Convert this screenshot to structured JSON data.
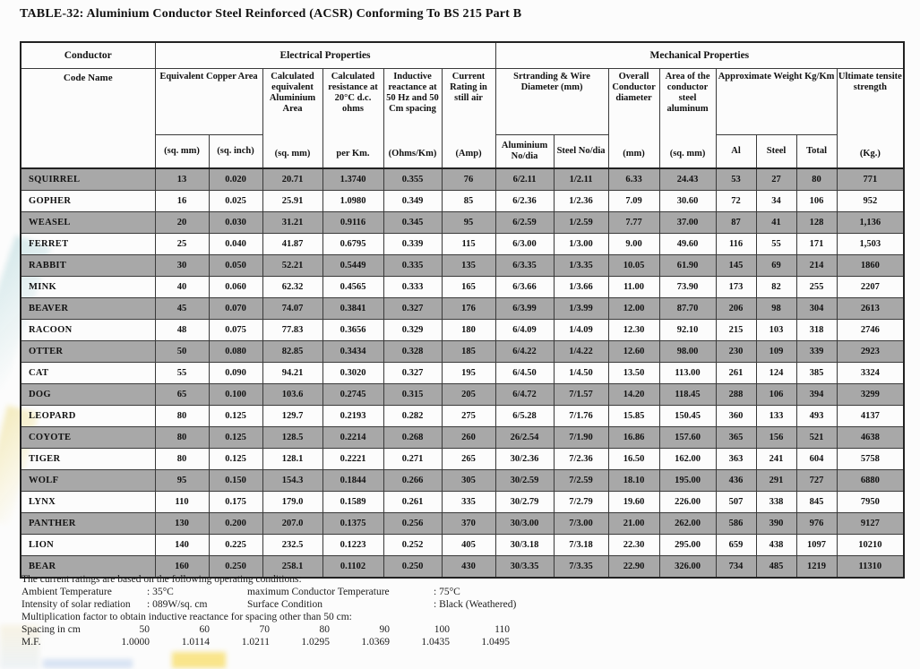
{
  "title": "TABLE-32: Aluminium Conductor Steel Reinforced (ACSR) Conforming To BS 215 Part B",
  "colors": {
    "row_shade": "#a8a8a8",
    "border": "#3a3a3a",
    "text": "#111111"
  },
  "table": {
    "group_headers": {
      "conductor": "Conductor",
      "electrical": "Electrical Properties",
      "mechanical": "Mechanical Properties"
    },
    "headers": {
      "code_name": "Code Name",
      "equivalent_copper": "Equivalent Copper Area",
      "eq_mm_unit": "(sq. mm)",
      "eq_inch_unit": "(sq. inch)",
      "calc_aluminium": "Calculated equivalent Aluminium Area",
      "calc_aluminium_unit": "(sq. mm)",
      "calc_resistance": "Calculated resistance at 20°C d.c. ohms",
      "calc_resistance_unit": "per Km.",
      "inductive": "Inductive reactance at 50 Hz and 50 Cm spacing",
      "inductive_unit": "(Ohms/Km)",
      "current_rating": "Current Rating in still air",
      "current_rating_unit": "(Amp)",
      "stranding": "Srtranding & Wire Diameter (mm)",
      "stranding_al": "Aluminium No/dia",
      "stranding_steel": "Steel No/dia",
      "overall_diameter": "Overall Conductor diameter",
      "overall_diameter_unit": "(mm)",
      "area_conductor": "Area of the conductor steel aluminum",
      "area_conductor_unit": "(sq. mm)",
      "weight": "Approximate Weight Kg/Km",
      "weight_al": "Al",
      "weight_steel": "Steel",
      "weight_total": "Total",
      "ultimate": "Ultimate tensite strength",
      "ultimate_unit": "(Kg.)"
    },
    "rows": [
      [
        "SQUIRREL",
        "13",
        "0.020",
        "20.71",
        "1.3740",
        "0.355",
        "76",
        "6/2.11",
        "1/2.11",
        "6.33",
        "24.43",
        "53",
        "27",
        "80",
        "771"
      ],
      [
        "GOPHER",
        "16",
        "0.025",
        "25.91",
        "1.0980",
        "0.349",
        "85",
        "6/2.36",
        "1/2.36",
        "7.09",
        "30.60",
        "72",
        "34",
        "106",
        "952"
      ],
      [
        "WEASEL",
        "20",
        "0.030",
        "31.21",
        "0.9116",
        "0.345",
        "95",
        "6/2.59",
        "1/2.59",
        "7.77",
        "37.00",
        "87",
        "41",
        "128",
        "1,136"
      ],
      [
        "FERRET",
        "25",
        "0.040",
        "41.87",
        "0.6795",
        "0.339",
        "115",
        "6/3.00",
        "1/3.00",
        "9.00",
        "49.60",
        "116",
        "55",
        "171",
        "1,503"
      ],
      [
        "RABBIT",
        "30",
        "0.050",
        "52.21",
        "0.5449",
        "0.335",
        "135",
        "6/3.35",
        "1/3.35",
        "10.05",
        "61.90",
        "145",
        "69",
        "214",
        "1860"
      ],
      [
        "MINK",
        "40",
        "0.060",
        "62.32",
        "0.4565",
        "0.333",
        "165",
        "6/3.66",
        "1/3.66",
        "11.00",
        "73.90",
        "173",
        "82",
        "255",
        "2207"
      ],
      [
        "BEAVER",
        "45",
        "0.070",
        "74.07",
        "0.3841",
        "0.327",
        "176",
        "6/3.99",
        "1/3.99",
        "12.00",
        "87.70",
        "206",
        "98",
        "304",
        "2613"
      ],
      [
        "RACOON",
        "48",
        "0.075",
        "77.83",
        "0.3656",
        "0.329",
        "180",
        "6/4.09",
        "1/4.09",
        "12.30",
        "92.10",
        "215",
        "103",
        "318",
        "2746"
      ],
      [
        "OTTER",
        "50",
        "0.080",
        "82.85",
        "0.3434",
        "0.328",
        "185",
        "6/4.22",
        "1/4.22",
        "12.60",
        "98.00",
        "230",
        "109",
        "339",
        "2923"
      ],
      [
        "CAT",
        "55",
        "0.090",
        "94.21",
        "0.3020",
        "0.327",
        "195",
        "6/4.50",
        "1/4.50",
        "13.50",
        "113.00",
        "261",
        "124",
        "385",
        "3324"
      ],
      [
        "DOG",
        "65",
        "0.100",
        "103.6",
        "0.2745",
        "0.315",
        "205",
        "6/4.72",
        "7/1.57",
        "14.20",
        "118.45",
        "288",
        "106",
        "394",
        "3299"
      ],
      [
        "LEOPARD",
        "80",
        "0.125",
        "129.7",
        "0.2193",
        "0.282",
        "275",
        "6/5.28",
        "7/1.76",
        "15.85",
        "150.45",
        "360",
        "133",
        "493",
        "4137"
      ],
      [
        "COYOTE",
        "80",
        "0.125",
        "128.5",
        "0.2214",
        "0.268",
        "260",
        "26/2.54",
        "7/1.90",
        "16.86",
        "157.60",
        "365",
        "156",
        "521",
        "4638"
      ],
      [
        "TIGER",
        "80",
        "0.125",
        "128.1",
        "0.2221",
        "0.271",
        "265",
        "30/2.36",
        "7/2.36",
        "16.50",
        "162.00",
        "363",
        "241",
        "604",
        "5758"
      ],
      [
        "WOLF",
        "95",
        "0.150",
        "154.3",
        "0.1844",
        "0.266",
        "305",
        "30/2.59",
        "7/2.59",
        "18.10",
        "195.00",
        "436",
        "291",
        "727",
        "6880"
      ],
      [
        "LYNX",
        "110",
        "0.175",
        "179.0",
        "0.1589",
        "0.261",
        "335",
        "30/2.79",
        "7/2.79",
        "19.60",
        "226.00",
        "507",
        "338",
        "845",
        "7950"
      ],
      [
        "PANTHER",
        "130",
        "0.200",
        "207.0",
        "0.1375",
        "0.256",
        "370",
        "30/3.00",
        "7/3.00",
        "21.00",
        "262.00",
        "586",
        "390",
        "976",
        "9127"
      ],
      [
        "LION",
        "140",
        "0.225",
        "232.5",
        "0.1223",
        "0.252",
        "405",
        "30/3.18",
        "7/3.18",
        "22.30",
        "295.00",
        "659",
        "438",
        "1097",
        "10210"
      ],
      [
        "BEAR",
        "160",
        "0.250",
        "258.1",
        "0.1102",
        "0.250",
        "430",
        "30/3.35",
        "7/3.35",
        "22.90",
        "326.00",
        "734",
        "485",
        "1219",
        "11310"
      ]
    ]
  },
  "notes": {
    "line1": "The current ratings are based on the following operating conditions:",
    "ambient_label": "Ambient Temperature",
    "ambient_value": ": 35°C",
    "max_cond_label": "maximum Conductor Temperature",
    "max_cond_value": ": 75°C",
    "solar_label": "Intensity of solar rediation",
    "solar_value": ": 089W/sq. cm",
    "surface_label": "Surface Condition",
    "surface_value": ": Black (Weathered)",
    "mult_line": "Multiplication factor to obtain inductive reactance for spacing other than 50 cm:",
    "spacing_label": "Spacing in cm",
    "spacing_values": [
      "50",
      "60",
      "70",
      "80",
      "90",
      "100",
      "110"
    ],
    "mf_label": "M.F.",
    "mf_values": [
      "1.0000",
      "1.0114",
      "1.0211",
      "1.0295",
      "1.0369",
      "1.0435",
      "1.0495"
    ]
  }
}
